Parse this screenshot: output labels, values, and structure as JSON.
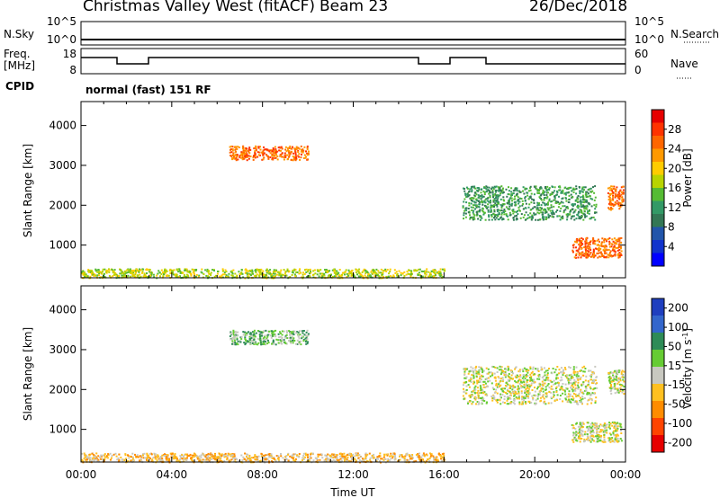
{
  "header": {
    "station": "Christmas Valley West (fitACF)",
    "beam": "Beam 23",
    "date": "26/Dec/2018",
    "mode_text": "normal (fast) 151 RF"
  },
  "top_panels": {
    "nsky": {
      "label": "N.Sky",
      "ticks": [
        "10^5",
        "10^0"
      ]
    },
    "nsearch": {
      "label": "N.Search",
      "ticks": [
        "10^5",
        "10^0"
      ]
    },
    "freq": {
      "label_line1": "Freq.",
      "label_line2": "[MHz]",
      "ticks": [
        "18",
        "8"
      ]
    },
    "nave": {
      "label": "Nave",
      "ticks": [
        "60",
        "0"
      ]
    },
    "cpid": {
      "label": "CPID"
    }
  },
  "chart_data": [
    {
      "type": "heatmap",
      "name": "power",
      "ylabel": "Slant Range [km]",
      "yticks": [
        1000,
        2000,
        3000,
        4000
      ],
      "ylim": [
        180,
        4600
      ],
      "xlim": [
        0,
        24
      ],
      "colorbar": {
        "label": "Power [dB]",
        "ticks": [
          "28",
          "24",
          "20",
          "16",
          "12",
          "8",
          "4"
        ],
        "colors": [
          "#e60000",
          "#ff3300",
          "#ff6600",
          "#ff9900",
          "#ffcc00",
          "#b8d400",
          "#55bb33",
          "#339966",
          "#337755",
          "#2255aa",
          "#1133cc",
          "#0000ff"
        ]
      },
      "regions": [
        {
          "t0": 0.0,
          "t1": 16.0,
          "r0": 190,
          "r1": 420,
          "level": 0.45
        },
        {
          "t0": 6.5,
          "t1": 10.0,
          "r0": 3150,
          "r1": 3500,
          "level": 0.15
        },
        {
          "t0": 16.8,
          "t1": 22.7,
          "r0": 1650,
          "r1": 2500,
          "level": 0.6
        },
        {
          "t0": 21.6,
          "t1": 23.8,
          "r0": 700,
          "r1": 1200,
          "level": 0.15
        },
        {
          "t0": 23.2,
          "t1": 23.9,
          "r0": 1900,
          "r1": 2500,
          "level": 0.2
        }
      ]
    },
    {
      "type": "heatmap",
      "name": "velocity",
      "xlabel": "Time UT",
      "ylabel": "Slant Range [km]",
      "yticks": [
        1000,
        2000,
        3000,
        4000
      ],
      "ylim": [
        180,
        4600
      ],
      "xticks": [
        "00:00",
        "04:00",
        "08:00",
        "12:00",
        "16:00",
        "20:00",
        "00:00"
      ],
      "xlim": [
        0,
        24
      ],
      "colorbar": {
        "label": "Velocity [m s",
        "label_sup": "-1",
        "label_end": "]",
        "ticks": [
          "200",
          "100",
          "50",
          "15",
          "-15",
          "-50",
          "-100",
          "-200"
        ],
        "colors": [
          "#1f3fbf",
          "#3366cc",
          "#2e8b57",
          "#66cc33",
          "#c8c8c0",
          "#ffc020",
          "#ff8c00",
          "#ff4400",
          "#e60000"
        ]
      },
      "regions": [
        {
          "t0": 0.0,
          "t1": 16.0,
          "r0": 190,
          "r1": 420,
          "level": 0.6
        },
        {
          "t0": 6.5,
          "t1": 10.0,
          "r0": 3150,
          "r1": 3500,
          "level": 0.4
        },
        {
          "t0": 16.8,
          "t1": 22.7,
          "r0": 1650,
          "r1": 2600,
          "level": 0.45
        },
        {
          "t0": 21.6,
          "t1": 23.8,
          "r0": 700,
          "r1": 1200,
          "level": 0.45
        },
        {
          "t0": 23.2,
          "t1": 23.9,
          "r0": 1900,
          "r1": 2500,
          "level": 0.45
        }
      ]
    }
  ]
}
